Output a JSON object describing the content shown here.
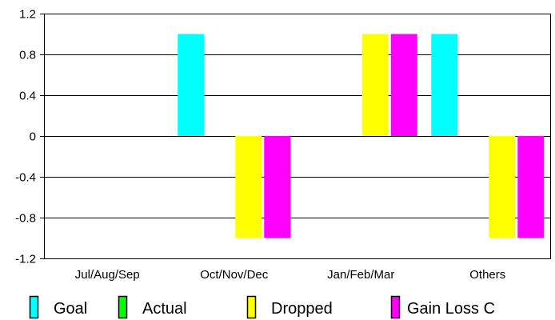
{
  "chart_data": {
    "type": "bar",
    "title": "",
    "xlabel": "",
    "ylabel": "",
    "categories": [
      "Jul/Aug/Sep",
      "Oct/Nov/Dec",
      "Jan/Feb/Mar",
      "Others"
    ],
    "series": [
      {
        "name": "Goal",
        "color": "#00ffff",
        "values": [
          0,
          1,
          0,
          1
        ]
      },
      {
        "name": "Actual",
        "color": "#00ff00",
        "values": [
          0,
          0,
          0,
          0
        ]
      },
      {
        "name": "Dropped",
        "color": "#ffff00",
        "values": [
          0,
          -1,
          1,
          -1
        ]
      },
      {
        "name": "Gain Loss C",
        "color": "#ff00ff",
        "values": [
          0,
          -1,
          1,
          -1
        ]
      }
    ],
    "ylim": [
      -1.2,
      1.2
    ],
    "yticks": [
      1.2,
      0.8,
      0.4,
      0,
      -0.4,
      -0.8,
      -1.2
    ],
    "ytick_labels": [
      "1.2",
      "0.8",
      "0.4",
      "0",
      "-0.4",
      "-0.8",
      "-1.2"
    ],
    "grid": "horizontal",
    "legend_position": "bottom"
  }
}
